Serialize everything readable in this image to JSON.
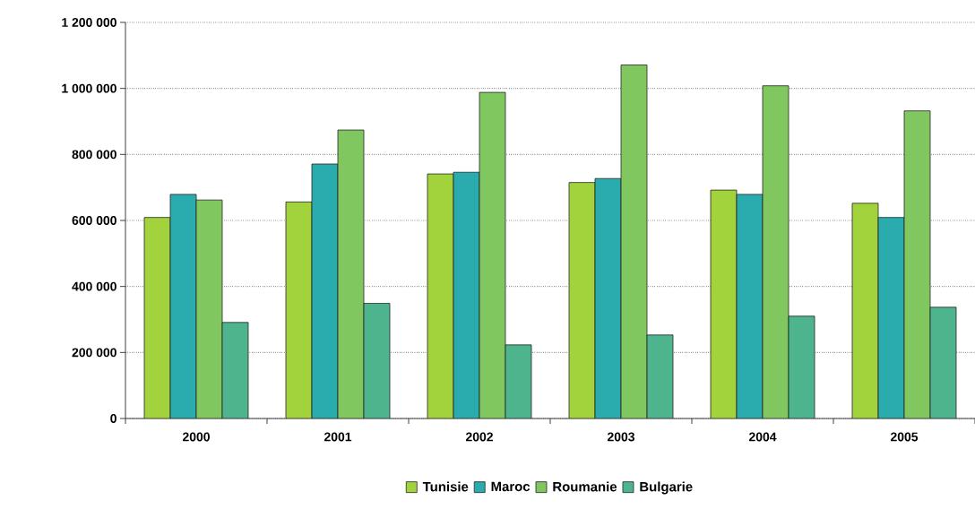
{
  "chart_data": {
    "type": "bar",
    "categories": [
      "2000",
      "2001",
      "2002",
      "2003",
      "2004",
      "2005"
    ],
    "series": [
      {
        "name": "Tunisie",
        "color": "#a3d33c",
        "values": [
          609000,
          656000,
          741000,
          715000,
          692000,
          652000
        ]
      },
      {
        "name": "Maroc",
        "color": "#2aabae",
        "values": [
          679000,
          771000,
          746000,
          727000,
          679000,
          609000
        ]
      },
      {
        "name": "Roumanie",
        "color": "#7fc75e",
        "values": [
          662000,
          874000,
          988000,
          1071000,
          1008000,
          932000
        ]
      },
      {
        "name": "Bulgarie",
        "color": "#4db48e",
        "values": [
          291000,
          349000,
          223000,
          253000,
          310000,
          337000
        ]
      }
    ],
    "ylim": [
      0,
      1200000
    ],
    "yticks": [
      {
        "value": 0,
        "label": "0"
      },
      {
        "value": 200000,
        "label": "200 000"
      },
      {
        "value": 400000,
        "label": "400 000"
      },
      {
        "value": 600000,
        "label": "600 000"
      },
      {
        "value": 800000,
        "label": "800 000"
      },
      {
        "value": 1000000,
        "label": "1 000 000"
      },
      {
        "value": 1200000,
        "label": "1 200 000"
      }
    ],
    "grid": "y",
    "legend": "bottom"
  }
}
